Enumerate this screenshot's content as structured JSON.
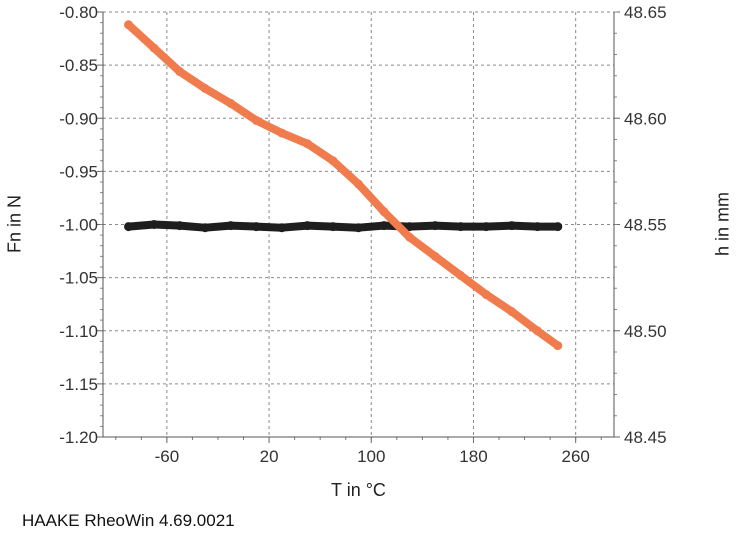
{
  "chart_data": {
    "type": "line",
    "xlabel": "T in °C",
    "ylabel_left": "Fn in N",
    "ylabel_right": "h in mm",
    "x_range": [
      -110,
      290
    ],
    "y_left_range": [
      -1.2,
      -0.8
    ],
    "y_right_range": [
      48.45,
      48.65
    ],
    "x_ticks": [
      -60,
      20,
      100,
      180,
      260
    ],
    "y_left_ticks": [
      "-0.80",
      "-0.85",
      "-0.90",
      "-0.95",
      "-1.00",
      "-1.05",
      "-1.10",
      "-1.15",
      "-1.20"
    ],
    "y_right_ticks": [
      "48.65",
      "48.60",
      "48.55",
      "48.50",
      "48.45"
    ],
    "grid": true,
    "series": [
      {
        "axis": "left",
        "color": "#1e1e1e",
        "x": [
          -90,
          -70,
          -50,
          -30,
          -10,
          10,
          30,
          50,
          70,
          90,
          110,
          130,
          150,
          170,
          190,
          210,
          230,
          246
        ],
        "values": [
          -1.002,
          -1.0,
          -1.001,
          -1.003,
          -1.001,
          -1.002,
          -1.003,
          -1.001,
          -1.002,
          -1.003,
          -1.001,
          -1.002,
          -1.001,
          -1.002,
          -1.002,
          -1.001,
          -1.002,
          -1.002
        ]
      },
      {
        "axis": "right",
        "color": "#f07b4d",
        "x": [
          -90,
          -70,
          -50,
          -30,
          -10,
          10,
          30,
          50,
          70,
          90,
          110,
          130,
          150,
          170,
          190,
          210,
          230,
          246
        ],
        "values": [
          48.644,
          48.633,
          48.622,
          48.614,
          48.607,
          48.599,
          48.593,
          48.588,
          48.58,
          48.569,
          48.556,
          48.544,
          48.535,
          48.526,
          48.517,
          48.509,
          48.5,
          48.493
        ]
      }
    ]
  },
  "footer": "HAAKE RheoWin 4.69.0021"
}
